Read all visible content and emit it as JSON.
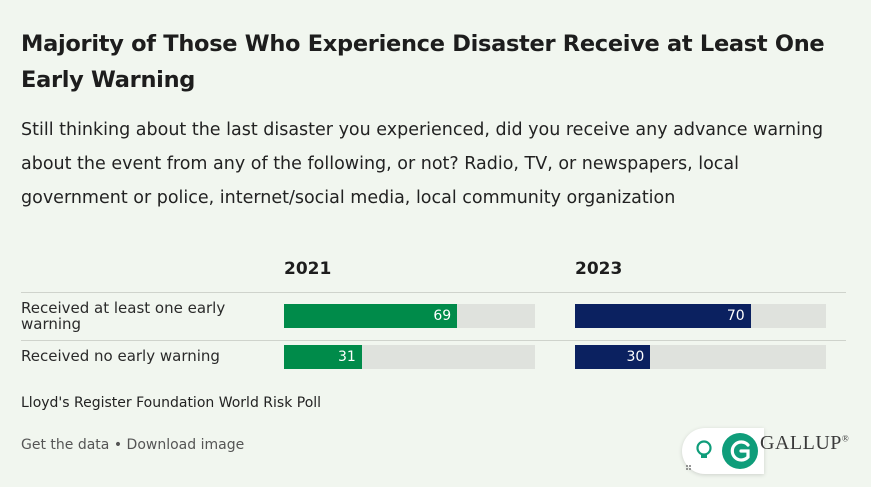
{
  "header": {
    "title": "Majority of Those Who Experience Disaster Receive at Least One Early Warning",
    "subtitle": "Still thinking about the last disaster you experienced, did you receive any advance warning about the event from any of the following, or not? Radio, TV, or newspapers, local government or police, internet/social media, local community organization"
  },
  "chart_data": {
    "type": "bar",
    "orientation": "horizontal",
    "xlim": [
      0,
      100
    ],
    "categories": [
      "Received at least one early warning",
      "Received no early warning"
    ],
    "series": [
      {
        "name": "2021",
        "values": [
          69,
          31
        ],
        "color": "#008b4a"
      },
      {
        "name": "2023",
        "values": [
          70,
          30
        ],
        "color": "#0b2160"
      }
    ],
    "track_color": "#dfe2dd"
  },
  "footer": {
    "source": "Lloyd's Register Foundation World Risk Poll",
    "get_data": "Get the data",
    "separator": " • ",
    "download": "Download image",
    "brand": "GALLUP",
    "brand_mark": "®"
  },
  "widget": {
    "icon_a": "lightbulb-icon",
    "icon_b": "grammarly-icon",
    "accent": "#0f9d7a"
  }
}
